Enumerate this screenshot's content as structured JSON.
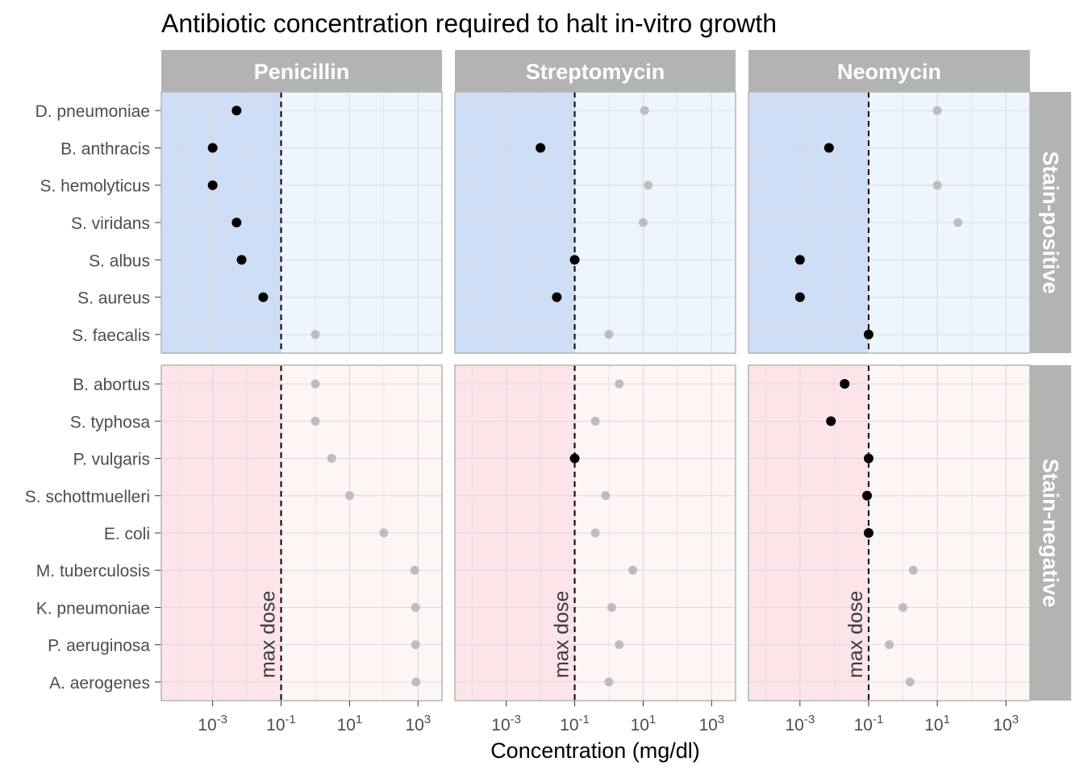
{
  "chart_data": {
    "type": "scatter",
    "title": "Antibiotic concentration required to halt in-vitro growth",
    "xlabel": "Concentration (mg/dl)",
    "ylabel": "",
    "x_scale": "log10",
    "x_range_log10": [
      -4.5,
      3.7
    ],
    "x_ticks": [
      {
        "base": "10",
        "exp": "-3"
      },
      {
        "base": "10",
        "exp": "-1"
      },
      {
        "base": "10",
        "exp": "1"
      },
      {
        "base": "10",
        "exp": "3"
      }
    ],
    "grid": true,
    "max_dose": 0.1,
    "max_dose_label": "max dose",
    "colors": {
      "positive_zone": "#cfdef7",
      "positive_background": "#eff5ff",
      "negative_zone": "#fde4e8",
      "negative_background": "#fdf6f5",
      "strip": "#b3b3b3",
      "effective_point": "#000000",
      "ineffective_point": "#bdbdbd"
    },
    "drugs": [
      "Penicillin",
      "Streptomycin",
      "Neomycin"
    ],
    "groups": [
      {
        "label": "Stain-positive",
        "bacteria": [
          "D. pneumoniae",
          "B. anthracis",
          "S. hemolyticus",
          "S. viridans",
          "S. albus",
          "S. aureus",
          "S. faecalis"
        ],
        "values": {
          "Penicillin": [
            0.005,
            0.001,
            0.001,
            0.005,
            0.007,
            0.03,
            1
          ],
          "Streptomycin": [
            11,
            0.01,
            14,
            10,
            0.1,
            0.03,
            1
          ],
          "Neomycin": [
            10,
            0.007,
            10,
            40,
            0.001,
            0.001,
            0.1
          ]
        }
      },
      {
        "label": "Stain-negative",
        "bacteria": [
          "B. abortus",
          "S. typhosa",
          "P. vulgaris",
          "S. schottmuelleri",
          "E. coli",
          "M. tuberculosis",
          "K. pneumoniae",
          "P. aeruginosa",
          "A. aerogenes"
        ],
        "values": {
          "Penicillin": [
            1,
            1,
            3,
            10,
            100,
            800,
            850,
            850,
            870
          ],
          "Streptomycin": [
            2,
            0.4,
            0.1,
            0.8,
            0.4,
            5,
            1.2,
            2,
            1
          ],
          "Neomycin": [
            0.02,
            0.008,
            0.1,
            0.09,
            0.1,
            2,
            1,
            0.4,
            1.6
          ]
        }
      }
    ]
  }
}
